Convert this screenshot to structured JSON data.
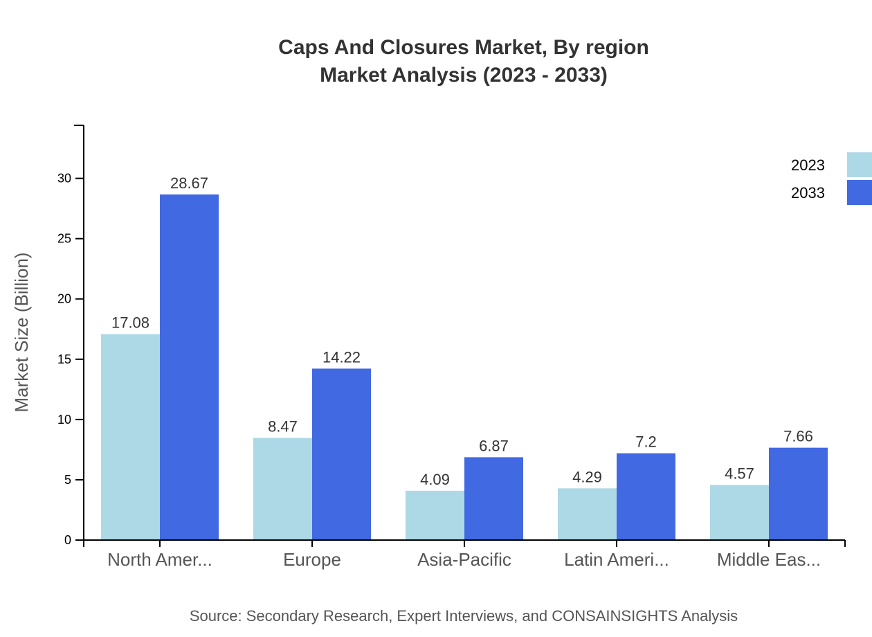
{
  "header": {
    "title_line1": "Caps And Closures Market, By region",
    "title_line2": "Market Analysis (2023 - 2033)"
  },
  "footer": {
    "source": "Source: Secondary Research, Expert Interviews, and CONSAINSIGHTS Analysis"
  },
  "colors": {
    "series_2023": "#add8e6",
    "series_2033": "#4169e1",
    "axis": "#000000",
    "label_text": "#333333",
    "category_text": "#555555"
  },
  "chart_data": {
    "type": "bar",
    "title": "Caps And Closures Market, By region Market Analysis (2023 - 2033)",
    "xlabel": "",
    "ylabel": "Market Size (Billion)",
    "ylim": [
      0,
      34.4
    ],
    "yticks": [
      0,
      5,
      10,
      15,
      20,
      25,
      30
    ],
    "grid": false,
    "legend_position": "top-right",
    "categories": [
      "North Amer...",
      "Europe",
      "Asia-Pacific",
      "Latin Ameri...",
      "Middle Eas..."
    ],
    "series": [
      {
        "name": "2023",
        "color": "#add8e6",
        "values": [
          17.08,
          8.47,
          4.09,
          4.29,
          4.57
        ]
      },
      {
        "name": "2033",
        "color": "#4169e1",
        "values": [
          28.67,
          14.22,
          6.87,
          7.2,
          7.66
        ]
      }
    ]
  }
}
